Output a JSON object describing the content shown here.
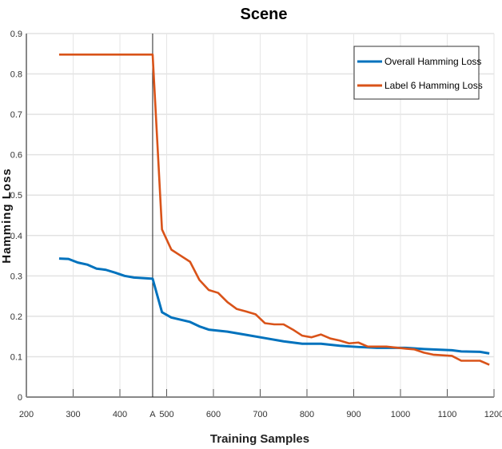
{
  "chart_data": {
    "type": "line",
    "title": "Scene",
    "xlabel": "Training Samples",
    "ylabel": "Hamming Loss",
    "xlim": [
      200,
      1200
    ],
    "ylim": [
      0,
      0.9
    ],
    "grid": true,
    "legend_position": "top-right",
    "x_ticks": [
      {
        "v": 200,
        "label": "200"
      },
      {
        "v": 300,
        "label": "300"
      },
      {
        "v": 400,
        "label": "400"
      },
      {
        "v": 470,
        "label": "A"
      },
      {
        "v": 500,
        "label": "500"
      },
      {
        "v": 600,
        "label": "600"
      },
      {
        "v": 700,
        "label": "700"
      },
      {
        "v": 800,
        "label": "800"
      },
      {
        "v": 900,
        "label": "900"
      },
      {
        "v": 1000,
        "label": "1000"
      },
      {
        "v": 1100,
        "label": "1100"
      },
      {
        "v": 1200,
        "label": "1200"
      }
    ],
    "y_ticks": [
      {
        "v": 0,
        "label": "0"
      },
      {
        "v": 0.1,
        "label": "0.1"
      },
      {
        "v": 0.2,
        "label": "0.2"
      },
      {
        "v": 0.3,
        "label": "0.3"
      },
      {
        "v": 0.4,
        "label": "0.4"
      },
      {
        "v": 0.5,
        "label": "0.5"
      },
      {
        "v": 0.6,
        "label": "0.6"
      },
      {
        "v": 0.7,
        "label": "0.7"
      },
      {
        "v": 0.8,
        "label": "0.8"
      },
      {
        "v": 0.9,
        "label": "0.9"
      }
    ],
    "vertical_marker": {
      "x": 470,
      "label": "A"
    },
    "series": [
      {
        "name": "Overall Hamming Loss",
        "color": "#0072BD",
        "points": [
          [
            270,
            0.343
          ],
          [
            290,
            0.342
          ],
          [
            310,
            0.333
          ],
          [
            330,
            0.328
          ],
          [
            350,
            0.318
          ],
          [
            370,
            0.315
          ],
          [
            390,
            0.308
          ],
          [
            410,
            0.3
          ],
          [
            430,
            0.296
          ],
          [
            470,
            0.293
          ],
          [
            490,
            0.21
          ],
          [
            510,
            0.197
          ],
          [
            550,
            0.186
          ],
          [
            570,
            0.175
          ],
          [
            590,
            0.167
          ],
          [
            630,
            0.162
          ],
          [
            670,
            0.154
          ],
          [
            710,
            0.146
          ],
          [
            750,
            0.138
          ],
          [
            790,
            0.132
          ],
          [
            830,
            0.132
          ],
          [
            870,
            0.127
          ],
          [
            910,
            0.124
          ],
          [
            950,
            0.122
          ],
          [
            1010,
            0.122
          ],
          [
            1050,
            0.119
          ],
          [
            1110,
            0.116
          ],
          [
            1130,
            0.113
          ],
          [
            1170,
            0.112
          ],
          [
            1190,
            0.108
          ]
        ]
      },
      {
        "name": "Label 6 Hamming Loss",
        "color": "#D95319",
        "points": [
          [
            270,
            0.848
          ],
          [
            470,
            0.848
          ],
          [
            490,
            0.415
          ],
          [
            510,
            0.365
          ],
          [
            530,
            0.35
          ],
          [
            550,
            0.335
          ],
          [
            570,
            0.29
          ],
          [
            590,
            0.265
          ],
          [
            610,
            0.258
          ],
          [
            630,
            0.235
          ],
          [
            650,
            0.218
          ],
          [
            670,
            0.212
          ],
          [
            690,
            0.205
          ],
          [
            710,
            0.183
          ],
          [
            730,
            0.18
          ],
          [
            750,
            0.18
          ],
          [
            770,
            0.167
          ],
          [
            790,
            0.152
          ],
          [
            810,
            0.148
          ],
          [
            830,
            0.155
          ],
          [
            850,
            0.145
          ],
          [
            870,
            0.14
          ],
          [
            890,
            0.133
          ],
          [
            910,
            0.135
          ],
          [
            930,
            0.125
          ],
          [
            970,
            0.125
          ],
          [
            1010,
            0.12
          ],
          [
            1030,
            0.118
          ],
          [
            1050,
            0.11
          ],
          [
            1070,
            0.105
          ],
          [
            1110,
            0.102
          ],
          [
            1130,
            0.09
          ],
          [
            1170,
            0.09
          ],
          [
            1190,
            0.08
          ]
        ]
      }
    ]
  }
}
